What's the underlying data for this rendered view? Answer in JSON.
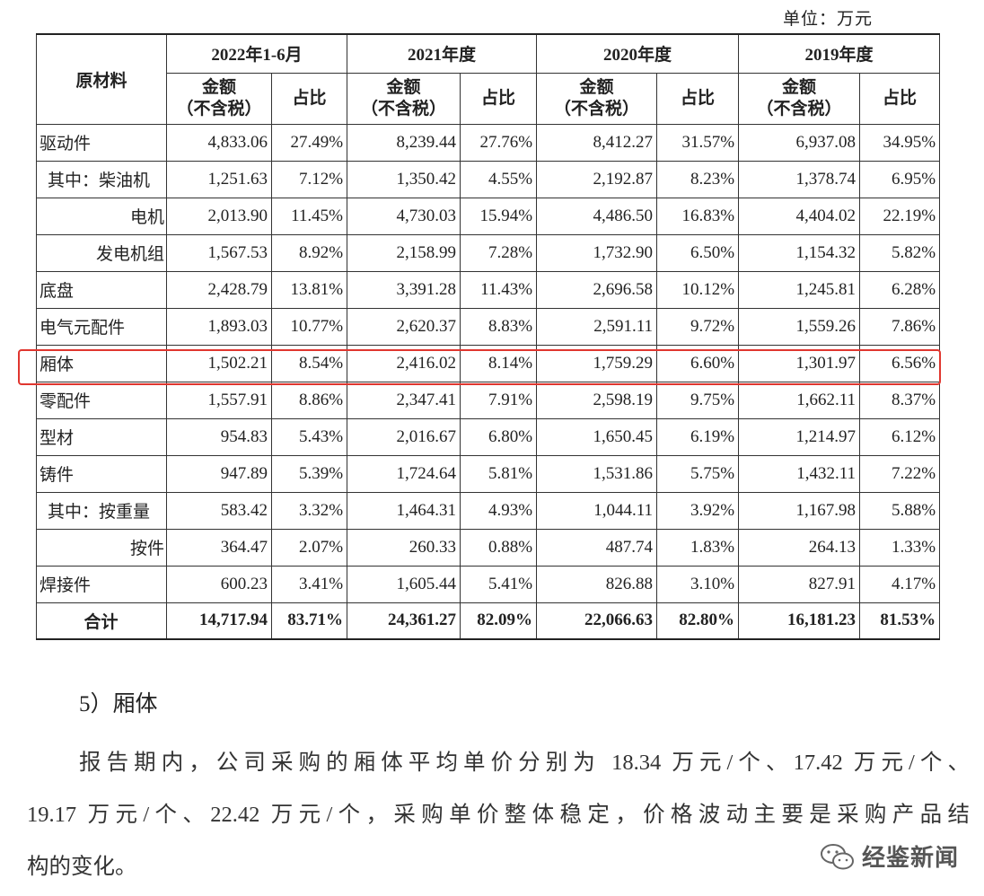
{
  "unit": "单位：万元",
  "table": {
    "corner": "原材料",
    "years": [
      "2022年1-6月",
      "2021年度",
      "2020年度",
      "2019年度"
    ],
    "amount_label": "金额",
    "amount_note": "（不含税）",
    "ratio_label": "占比",
    "rows": [
      [
        "驱动件",
        "4,833.06",
        "27.49%",
        "8,239.44",
        "27.76%",
        "8,412.27",
        "31.57%",
        "6,937.08",
        "34.95%"
      ],
      [
        "其中：柴油机",
        "1,251.63",
        "7.12%",
        "1,350.42",
        "4.55%",
        "2,192.87",
        "8.23%",
        "1,378.74",
        "6.95%"
      ],
      [
        "电机",
        "2,013.90",
        "11.45%",
        "4,730.03",
        "15.94%",
        "4,486.50",
        "16.83%",
        "4,404.02",
        "22.19%"
      ],
      [
        "发电机组",
        "1,567.53",
        "8.92%",
        "2,158.99",
        "7.28%",
        "1,732.90",
        "6.50%",
        "1,154.32",
        "5.82%"
      ],
      [
        "底盘",
        "2,428.79",
        "13.81%",
        "3,391.28",
        "11.43%",
        "2,696.58",
        "10.12%",
        "1,245.81",
        "6.28%"
      ],
      [
        "电气元配件",
        "1,893.03",
        "10.77%",
        "2,620.37",
        "8.83%",
        "2,591.11",
        "9.72%",
        "1,559.26",
        "7.86%"
      ],
      [
        "厢体",
        "1,502.21",
        "8.54%",
        "2,416.02",
        "8.14%",
        "1,759.29",
        "6.60%",
        "1,301.97",
        "6.56%"
      ],
      [
        "零配件",
        "1,557.91",
        "8.86%",
        "2,347.41",
        "7.91%",
        "2,598.19",
        "9.75%",
        "1,662.11",
        "8.37%"
      ],
      [
        "型材",
        "954.83",
        "5.43%",
        "2,016.67",
        "6.80%",
        "1,650.45",
        "6.19%",
        "1,214.97",
        "6.12%"
      ],
      [
        "铸件",
        "947.89",
        "5.39%",
        "1,724.64",
        "5.81%",
        "1,531.86",
        "5.75%",
        "1,432.11",
        "7.22%"
      ],
      [
        "其中：按重量",
        "583.42",
        "3.32%",
        "1,464.31",
        "4.93%",
        "1,044.11",
        "3.92%",
        "1,167.98",
        "5.88%"
      ],
      [
        "按件",
        "364.47",
        "2.07%",
        "260.33",
        "0.88%",
        "487.74",
        "1.83%",
        "264.13",
        "1.33%"
      ],
      [
        "焊接件",
        "600.23",
        "3.41%",
        "1,605.44",
        "5.41%",
        "826.88",
        "3.10%",
        "827.91",
        "4.17%"
      ]
    ],
    "total": [
      "合计",
      "14,717.94",
      "83.71%",
      "24,361.27",
      "82.09%",
      "22,066.63",
      "82.80%",
      "16,181.23",
      "81.53%"
    ]
  },
  "section_title": "5）厢体",
  "paragraph_lines": [
    "报告期内，公司采购的厢体平均单价分别为 18.34 万元/个、17.42 万元/个、",
    "19.17 万元/个、22.42 万元/个，采购单价整体稳定，价格波动主要是采购产品结",
    "构的变化。"
  ],
  "watermark": "经鉴新闻"
}
